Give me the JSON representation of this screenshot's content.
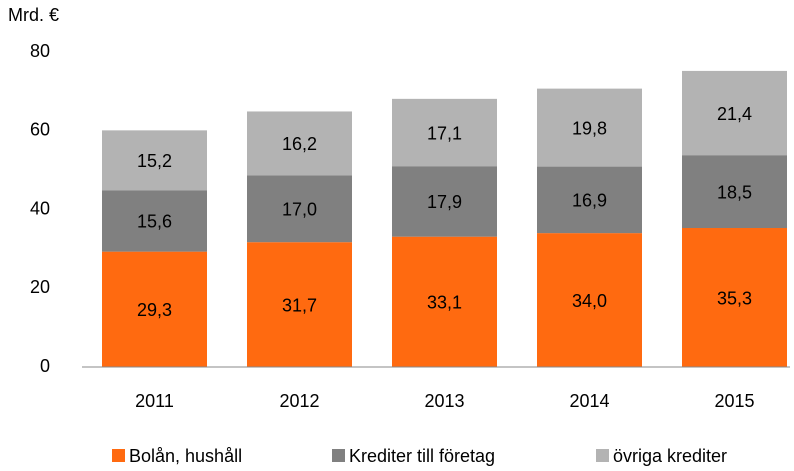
{
  "chart_data": {
    "type": "stacked_bar",
    "y_axis_label": "Mrd. €",
    "categories": [
      "2011",
      "2012",
      "2013",
      "2014",
      "2015"
    ],
    "series": [
      {
        "name": "Bolån, hushåll",
        "color": "#ff6a10",
        "values": [
          29.3,
          31.7,
          33.1,
          34.0,
          35.3
        ],
        "value_labels": [
          "29,3",
          "31,7",
          "33,1",
          "34,0",
          "35,3"
        ]
      },
      {
        "name": "Krediter till företag",
        "color": "#808080",
        "values": [
          15.6,
          17.0,
          17.9,
          16.9,
          18.5
        ],
        "value_labels": [
          "15,6",
          "17,0",
          "17,9",
          "16,9",
          "18,5"
        ]
      },
      {
        "name": "övriga krediter",
        "color": "#b3b3b3",
        "values": [
          15.2,
          16.2,
          17.1,
          19.8,
          21.4
        ],
        "value_labels": [
          "15,2",
          "16,2",
          "17,1",
          "19,8",
          "21,4"
        ]
      }
    ],
    "ylim": [
      0,
      80
    ],
    "yticks": [
      0,
      20,
      40,
      60,
      80
    ],
    "grid": false,
    "legend": "bottom"
  }
}
